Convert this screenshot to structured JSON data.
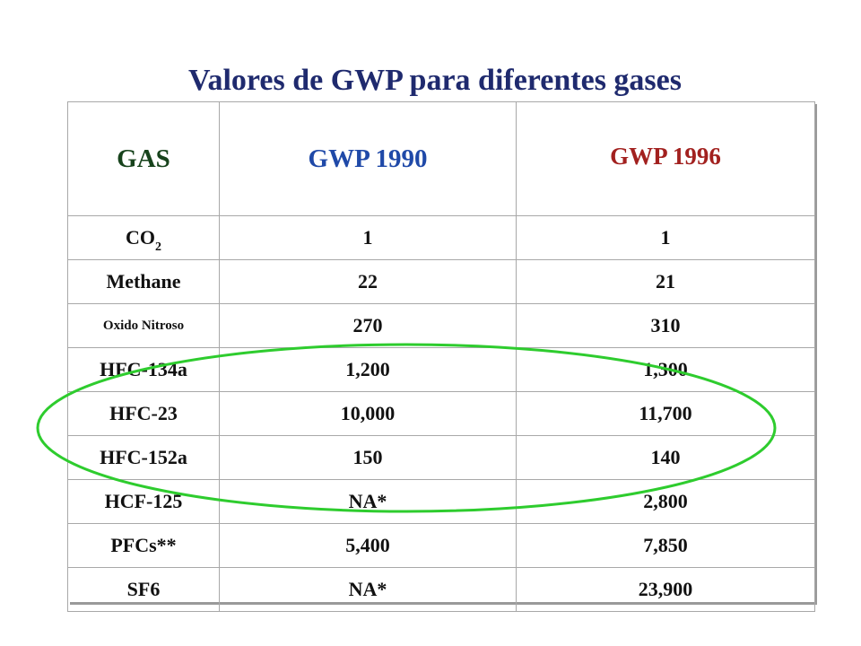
{
  "title": "Valores de GWP para diferentes gases",
  "headers": {
    "gas": "GAS",
    "gwp1990": "GWP 1990",
    "gwp1996": "GWP 1996"
  },
  "rows": [
    {
      "gas": "CO",
      "gas_sub": "2",
      "gwp1990": "1",
      "gwp1996": "1"
    },
    {
      "gas": "Methane",
      "gwp1990": "22",
      "gwp1996": "21"
    },
    {
      "gas": "Oxido Nitroso",
      "gwp1990": "270",
      "gwp1996": "310"
    },
    {
      "gas": "HFC-134a",
      "gwp1990": "1,200",
      "gwp1996": "1,300"
    },
    {
      "gas": "HFC-23",
      "gwp1990": "10,000",
      "gwp1996": "11,700"
    },
    {
      "gas": "HFC-152a",
      "gwp1990": "150",
      "gwp1996": "140"
    },
    {
      "gas": "HCF-125",
      "gwp1990": "NA*",
      "gwp1996": "2,800"
    },
    {
      "gas": "PFCs**",
      "gwp1990": "5,400",
      "gwp1996": "7,850"
    },
    {
      "gas": "SF6",
      "gwp1990": "NA*",
      "gwp1996": "23,900"
    }
  ],
  "colors": {
    "title": "#1f2a6e",
    "header_gas": "#17431c",
    "header_1990": "#1f49a8",
    "header_1996": "#a2211f",
    "highlight_ellipse": "#2ecc2e"
  }
}
